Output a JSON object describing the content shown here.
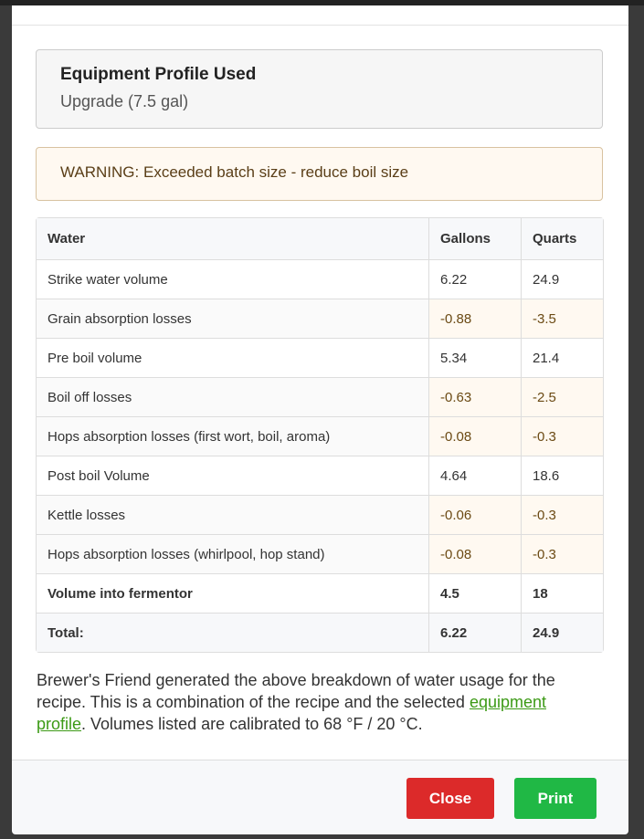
{
  "equipment": {
    "title": "Equipment Profile Used",
    "value": "Upgrade (7.5 gal)"
  },
  "warning": "WARNING: Exceeded batch size - reduce boil size",
  "table": {
    "headers": [
      "Water",
      "Gallons",
      "Quarts"
    ],
    "rows": [
      {
        "label": "Strike water volume",
        "gallons": "6.22",
        "quarts": "24.9",
        "type": "normal"
      },
      {
        "label": "Grain absorption losses",
        "gallons": "-0.88",
        "quarts": "-3.5",
        "type": "loss"
      },
      {
        "label": "Pre boil volume",
        "gallons": "5.34",
        "quarts": "21.4",
        "type": "normal"
      },
      {
        "label": "Boil off losses",
        "gallons": "-0.63",
        "quarts": "-2.5",
        "type": "loss"
      },
      {
        "label": "Hops absorption losses (first wort, boil, aroma)",
        "gallons": "-0.08",
        "quarts": "-0.3",
        "type": "loss"
      },
      {
        "label": "Post boil Volume",
        "gallons": "4.64",
        "quarts": "18.6",
        "type": "normal"
      },
      {
        "label": "Kettle losses",
        "gallons": "-0.06",
        "quarts": "-0.3",
        "type": "loss"
      },
      {
        "label": "Hops absorption losses (whirlpool, hop stand)",
        "gallons": "-0.08",
        "quarts": "-0.3",
        "type": "loss"
      },
      {
        "label": "Volume into fermentor",
        "gallons": "4.5",
        "quarts": "18",
        "type": "bold"
      },
      {
        "label": "Total:",
        "gallons": "6.22",
        "quarts": "24.9",
        "type": "total"
      }
    ]
  },
  "note": {
    "before": "Brewer's Friend generated the above breakdown of water usage for the recipe. This is a combination of the recipe and the selected ",
    "link": "equipment profile",
    "after": ". Volumes listed are calibrated to 68 °F / 20 °C."
  },
  "buttons": {
    "close": "Close",
    "print": "Print"
  },
  "colors": {
    "close": "#dc2a2a",
    "print": "#20b845",
    "link": "#3c9a16"
  }
}
